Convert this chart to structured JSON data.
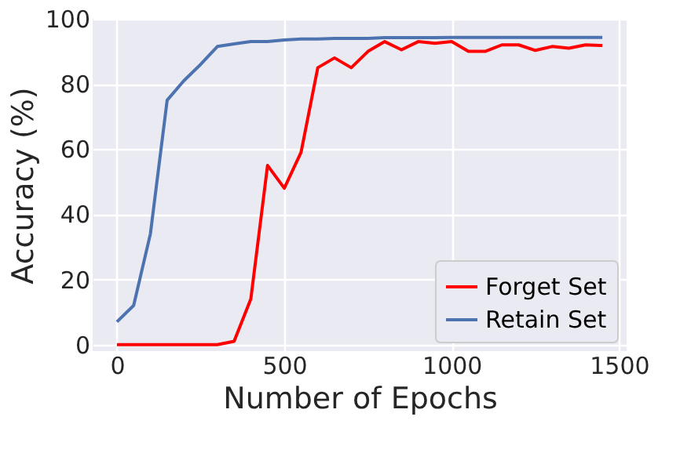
{
  "chart_data": {
    "type": "line",
    "xlabel": "Number of Epochs",
    "ylabel": "Accuracy (%)",
    "x": [
      0,
      50,
      100,
      150,
      200,
      250,
      300,
      350,
      400,
      450,
      500,
      550,
      600,
      650,
      700,
      750,
      800,
      850,
      900,
      950,
      1000,
      1050,
      1100,
      1150,
      1200,
      1250,
      1300,
      1350,
      1400,
      1450
    ],
    "series": [
      {
        "name": "Forget Set",
        "color": "#ff0000",
        "values": [
          0,
          0,
          0,
          0,
          0,
          0,
          0,
          1,
          14,
          55,
          48,
          59,
          85,
          88,
          85,
          90,
          93,
          90.5,
          93,
          92.5,
          93,
          90,
          90,
          92,
          92,
          90.3,
          91.5,
          91,
          92,
          91.8
        ]
      },
      {
        "name": "Retain Set",
        "color": "#4c72b0",
        "values": [
          7,
          12,
          34,
          75,
          81,
          86,
          91.5,
          92.3,
          93,
          93,
          93.5,
          93.8,
          93.8,
          94,
          94,
          94,
          94.2,
          94.2,
          94.2,
          94.2,
          94.3,
          94.3,
          94.3,
          94.3,
          94.3,
          94.3,
          94.3,
          94.3,
          94.3,
          94.3
        ]
      }
    ],
    "xlim": [
      -72.5,
      1522.5
    ],
    "ylim": [
      -2,
      100
    ],
    "xticks": [
      0,
      500,
      1000,
      1500
    ],
    "yticks": [
      0,
      20,
      40,
      60,
      80,
      100
    ],
    "grid": true,
    "legend": "bottom right",
    "line_style": "solid",
    "marker": "none"
  }
}
